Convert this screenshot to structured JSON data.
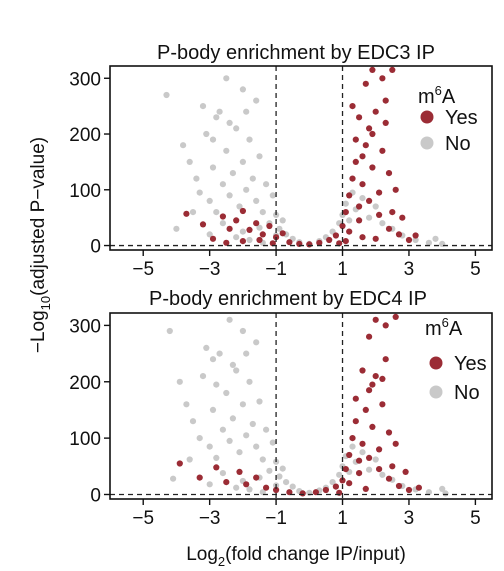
{
  "figure": {
    "shared_ylabel_prefix": "−Log",
    "shared_ylabel_sub": "10",
    "shared_ylabel_rest": "(adjusted P−value)",
    "shared_xlabel_prefix": "Log",
    "shared_xlabel_sub": "2",
    "shared_xlabel_rest": "(fold change IP/input)"
  },
  "colors": {
    "yes": "#9b2c35",
    "no": "#c9c9c9",
    "ref_line": "#222222"
  },
  "chart_data": [
    {
      "type": "scatter",
      "title": "P-body enrichment by EDC3 IP",
      "xlabel": "Log2(fold change IP/input)",
      "ylabel": "−Log10(adjusted P−value)",
      "xlim": [
        -6,
        5.5
      ],
      "ylim": [
        -8,
        322
      ],
      "x_ticks": [
        -5,
        -3,
        -1,
        1,
        3,
        5
      ],
      "y_ticks": [
        0,
        100,
        200,
        300
      ],
      "x_tick_labels": [
        "−5",
        "−3",
        "−1",
        "1",
        "3",
        "5"
      ],
      "y_tick_labels": [
        "0",
        "100",
        "200",
        "300"
      ],
      "reference_lines": {
        "vertical": [
          -1,
          1
        ],
        "horizontal": [
          0
        ]
      },
      "legend": {
        "title_main": "m",
        "title_sup": "6",
        "title_end": "A",
        "placement": "top-right",
        "entries": [
          "Yes",
          "No"
        ]
      },
      "series": [
        {
          "name": "Yes",
          "color": "#9b2c35",
          "points": [
            [
              -3.7,
              57
            ],
            [
              -3.2,
              38
            ],
            [
              -2.6,
              52
            ],
            [
              -2.4,
              30
            ],
            [
              -2.2,
              45
            ],
            [
              -2.0,
              62
            ],
            [
              -1.8,
              28
            ],
            [
              -1.6,
              40
            ],
            [
              -1.4,
              20
            ],
            [
              -1.2,
              35
            ],
            [
              -1.0,
              15
            ],
            [
              -0.8,
              22
            ],
            [
              -2.9,
              12
            ],
            [
              -2.5,
              5
            ],
            [
              -2.0,
              8
            ],
            [
              -1.5,
              10
            ],
            [
              -1.1,
              4
            ],
            [
              -0.6,
              6
            ],
            [
              -0.3,
              3
            ],
            [
              0.0,
              2
            ],
            [
              0.3,
              5
            ],
            [
              0.6,
              10
            ],
            [
              0.8,
              18
            ],
            [
              1.0,
              35
            ],
            [
              1.1,
              60
            ],
            [
              1.2,
              90
            ],
            [
              1.3,
              120
            ],
            [
              1.4,
              150
            ],
            [
              1.5,
              70
            ],
            [
              1.6,
              110
            ],
            [
              1.7,
              180
            ],
            [
              1.8,
              210
            ],
            [
              1.9,
              140
            ],
            [
              2.0,
              240
            ],
            [
              2.1,
              95
            ],
            [
              2.2,
              170
            ],
            [
              2.3,
              260
            ],
            [
              2.4,
              130
            ],
            [
              2.5,
              60
            ],
            [
              1.5,
              230
            ],
            [
              1.7,
              290
            ],
            [
              1.9,
              315
            ],
            [
              2.2,
              300
            ],
            [
              2.5,
              315
            ],
            [
              1.2,
              25
            ],
            [
              1.5,
              45
            ],
            [
              1.8,
              80
            ],
            [
              2.1,
              55
            ],
            [
              2.4,
              30
            ],
            [
              2.7,
              20
            ],
            [
              3.0,
              10
            ],
            [
              1.1,
              8
            ],
            [
              1.6,
              15
            ],
            [
              2.0,
              12
            ],
            [
              1.4,
              190
            ],
            [
              1.9,
              200
            ],
            [
              2.3,
              220
            ],
            [
              1.3,
              250
            ],
            [
              1.6,
              160
            ],
            [
              2.6,
              100
            ],
            [
              2.8,
              50
            ],
            [
              3.2,
              18
            ],
            [
              0.9,
              4
            ]
          ]
        },
        {
          "name": "No",
          "color": "#c9c9c9",
          "points": [
            [
              -4.3,
              270
            ],
            [
              -3.8,
              180
            ],
            [
              -3.6,
              150
            ],
            [
              -3.4,
              120
            ],
            [
              -3.3,
              95
            ],
            [
              -3.1,
              200
            ],
            [
              -3.0,
              80
            ],
            [
              -2.9,
              140
            ],
            [
              -2.8,
              60
            ],
            [
              -2.7,
              240
            ],
            [
              -2.6,
              110
            ],
            [
              -2.5,
              170
            ],
            [
              -2.4,
              90
            ],
            [
              -2.3,
              130
            ],
            [
              -2.2,
              210
            ],
            [
              -2.1,
              70
            ],
            [
              -2.0,
              150
            ],
            [
              -1.9,
              100
            ],
            [
              -1.8,
              190
            ],
            [
              -1.7,
              120
            ],
            [
              -1.6,
              80
            ],
            [
              -1.5,
              160
            ],
            [
              -1.4,
              60
            ],
            [
              -1.3,
              110
            ],
            [
              -1.2,
              40
            ],
            [
              -1.1,
              90
            ],
            [
              -1.0,
              55
            ],
            [
              -0.9,
              30
            ],
            [
              -0.8,
              45
            ],
            [
              -0.7,
              20
            ],
            [
              -0.5,
              12
            ],
            [
              -0.3,
              6
            ],
            [
              0.0,
              3
            ],
            [
              0.3,
              8
            ],
            [
              0.5,
              15
            ],
            [
              0.7,
              25
            ],
            [
              0.9,
              40
            ],
            [
              1.0,
              55
            ],
            [
              1.1,
              75
            ],
            [
              1.2,
              45
            ],
            [
              1.3,
              95
            ],
            [
              1.4,
              65
            ],
            [
              1.6,
              85
            ],
            [
              1.8,
              50
            ],
            [
              2.0,
              70
            ],
            [
              2.2,
              40
            ],
            [
              2.5,
              30
            ],
            [
              2.8,
              18
            ],
            [
              3.2,
              10
            ],
            [
              3.6,
              5
            ],
            [
              4.0,
              3
            ],
            [
              -2.5,
              300
            ],
            [
              -2.0,
              280
            ],
            [
              -1.6,
              260
            ],
            [
              -2.8,
              230
            ],
            [
              -3.5,
              60
            ],
            [
              -4.0,
              30
            ],
            [
              -3.0,
              20
            ],
            [
              -2.2,
              15
            ],
            [
              -1.8,
              10
            ],
            [
              -1.4,
              5
            ],
            [
              -2.6,
              40
            ],
            [
              -2.0,
              25
            ],
            [
              -1.5,
              32
            ],
            [
              -1.0,
              18
            ],
            [
              3.8,
              12
            ],
            [
              -3.2,
              250
            ],
            [
              -2.9,
              190
            ],
            [
              -2.4,
              220
            ],
            [
              -1.9,
              240
            ]
          ]
        }
      ]
    },
    {
      "type": "scatter",
      "title": "P-body enrichment by EDC4 IP",
      "xlabel": "Log2(fold change IP/input)",
      "ylabel": "−Log10(adjusted P−value)",
      "xlim": [
        -6,
        5.5
      ],
      "ylim": [
        -8,
        322
      ],
      "x_ticks": [
        -5,
        -3,
        -1,
        1,
        3,
        5
      ],
      "y_ticks": [
        0,
        100,
        200,
        300
      ],
      "x_tick_labels": [
        "−5",
        "−3",
        "−1",
        "1",
        "3",
        "5"
      ],
      "y_tick_labels": [
        "0",
        "100",
        "200",
        "300"
      ],
      "reference_lines": {
        "vertical": [
          -1,
          1
        ],
        "horizontal": [
          0
        ]
      },
      "legend": {
        "title_main": "m",
        "title_sup": "6",
        "title_end": "A",
        "placement": "top-right",
        "entries": [
          "Yes",
          "No"
        ]
      },
      "series": [
        {
          "name": "Yes",
          "color": "#9b2c35",
          "points": [
            [
              -3.9,
              55
            ],
            [
              -3.3,
              30
            ],
            [
              -2.8,
              48
            ],
            [
              -2.5,
              22
            ],
            [
              -2.1,
              40
            ],
            [
              -1.9,
              18
            ],
            [
              -1.6,
              30
            ],
            [
              -1.3,
              12
            ],
            [
              -1.0,
              8
            ],
            [
              -0.6,
              4
            ],
            [
              -0.2,
              2
            ],
            [
              0.2,
              4
            ],
            [
              0.5,
              8
            ],
            [
              0.8,
              14
            ],
            [
              1.0,
              25
            ],
            [
              1.1,
              45
            ],
            [
              1.2,
              70
            ],
            [
              1.3,
              100
            ],
            [
              1.4,
              130
            ],
            [
              1.5,
              60
            ],
            [
              1.6,
              90
            ],
            [
              1.7,
              150
            ],
            [
              1.8,
              185
            ],
            [
              1.9,
              120
            ],
            [
              2.0,
              210
            ],
            [
              2.1,
              80
            ],
            [
              2.2,
              160
            ],
            [
              2.3,
              240
            ],
            [
              2.4,
              110
            ],
            [
              2.5,
              50
            ],
            [
              1.6,
              220
            ],
            [
              1.8,
              280
            ],
            [
              2.0,
              310
            ],
            [
              2.3,
              300
            ],
            [
              2.6,
              315
            ],
            [
              1.2,
              20
            ],
            [
              1.5,
              38
            ],
            [
              1.8,
              65
            ],
            [
              2.1,
              45
            ],
            [
              2.4,
              28
            ],
            [
              2.7,
              15
            ],
            [
              3.0,
              8
            ],
            [
              1.4,
              170
            ],
            [
              1.9,
              195
            ],
            [
              2.2,
              205
            ],
            [
              2.6,
              90
            ],
            [
              2.9,
              40
            ],
            [
              3.3,
              12
            ],
            [
              0.9,
              3
            ],
            [
              1.7,
              10
            ]
          ]
        },
        {
          "name": "No",
          "color": "#c9c9c9",
          "points": [
            [
              -4.2,
              290
            ],
            [
              -3.9,
              200
            ],
            [
              -3.7,
              160
            ],
            [
              -3.5,
              130
            ],
            [
              -3.3,
              100
            ],
            [
              -3.2,
              210
            ],
            [
              -3.0,
              85
            ],
            [
              -2.9,
              150
            ],
            [
              -2.8,
              65
            ],
            [
              -2.7,
              250
            ],
            [
              -2.6,
              115
            ],
            [
              -2.5,
              180
            ],
            [
              -2.4,
              95
            ],
            [
              -2.3,
              135
            ],
            [
              -2.2,
              220
            ],
            [
              -2.1,
              75
            ],
            [
              -2.0,
              160
            ],
            [
              -1.9,
              105
            ],
            [
              -1.8,
              200
            ],
            [
              -1.7,
              125
            ],
            [
              -1.6,
              85
            ],
            [
              -1.5,
              165
            ],
            [
              -1.4,
              62
            ],
            [
              -1.3,
              115
            ],
            [
              -1.2,
              42
            ],
            [
              -1.1,
              92
            ],
            [
              -1.0,
              58
            ],
            [
              -0.9,
              32
            ],
            [
              -0.8,
              46
            ],
            [
              -0.7,
              22
            ],
            [
              -0.5,
              14
            ],
            [
              -0.3,
              6
            ],
            [
              0.0,
              3
            ],
            [
              0.3,
              7
            ],
            [
              0.5,
              12
            ],
            [
              0.7,
              22
            ],
            [
              0.9,
              35
            ],
            [
              1.0,
              50
            ],
            [
              1.1,
              68
            ],
            [
              1.2,
              40
            ],
            [
              1.3,
              85
            ],
            [
              1.4,
              58
            ],
            [
              1.6,
              75
            ],
            [
              1.8,
              44
            ],
            [
              2.0,
              62
            ],
            [
              2.2,
              35
            ],
            [
              2.5,
              26
            ],
            [
              2.8,
              15
            ],
            [
              3.2,
              9
            ],
            [
              3.6,
              4
            ],
            [
              4.1,
              2
            ],
            [
              -2.4,
              310
            ],
            [
              -2.0,
              290
            ],
            [
              -1.6,
              270
            ],
            [
              -2.9,
              240
            ],
            [
              -3.6,
              62
            ],
            [
              -4.1,
              28
            ],
            [
              -3.0,
              18
            ],
            [
              -2.2,
              12
            ],
            [
              -1.8,
              9
            ],
            [
              -1.4,
              4
            ],
            [
              -2.6,
              38
            ],
            [
              -2.0,
              24
            ],
            [
              -1.5,
              30
            ],
            [
              -1.0,
              16
            ],
            [
              4.0,
              10
            ],
            [
              -3.1,
              260
            ],
            [
              -2.8,
              195
            ],
            [
              -2.3,
              230
            ],
            [
              -1.9,
              250
            ]
          ]
        }
      ]
    }
  ]
}
